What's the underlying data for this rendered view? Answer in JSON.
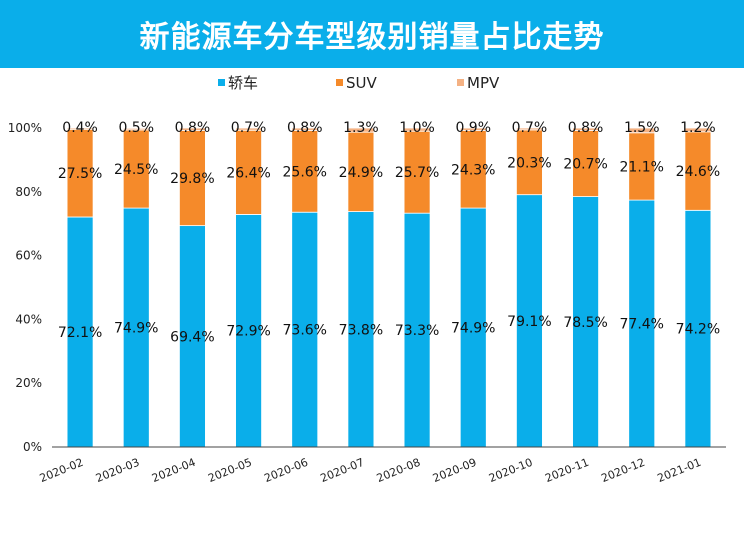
{
  "title": "新能源车分车型级别销量占比走势",
  "chart_data": {
    "type": "bar",
    "stacked": true,
    "categories": [
      "2020-02",
      "2020-03",
      "2020-04",
      "2020-05",
      "2020-06",
      "2020-07",
      "2020-08",
      "2020-09",
      "2020-10",
      "2020-11",
      "2020-12",
      "2021-01"
    ],
    "series": [
      {
        "name": "轿车",
        "color": "#0aaeea",
        "values": [
          72.1,
          74.9,
          69.4,
          72.9,
          73.6,
          73.8,
          73.3,
          74.9,
          79.1,
          78.5,
          77.4,
          74.2
        ],
        "labels": [
          "72.1%",
          "74.9%",
          "69.4%",
          "72.9%",
          "73.6%",
          "73.8%",
          "73.3%",
          "74.9%",
          "79.1%",
          "78.5%",
          "77.4%",
          "74.2%"
        ]
      },
      {
        "name": "SUV",
        "color": "#f58a2a",
        "values": [
          27.5,
          24.5,
          29.8,
          26.4,
          25.6,
          24.9,
          25.7,
          24.3,
          20.3,
          20.7,
          21.1,
          24.6
        ],
        "labels": [
          "27.5%",
          "24.5%",
          "29.8%",
          "26.4%",
          "25.6%",
          "24.9%",
          "25.7%",
          "24.3%",
          "20.3%",
          "20.7%",
          "21.1%",
          "24.6%"
        ]
      },
      {
        "name": "MPV",
        "color": "#f4b183",
        "values": [
          0.4,
          0.5,
          0.8,
          0.7,
          0.8,
          1.3,
          1.0,
          0.9,
          0.7,
          0.8,
          1.5,
          1.2
        ],
        "labels": [
          "0.4%",
          "0.5%",
          "0.8%",
          "0.7%",
          "0.8%",
          "1.3%",
          "1.0%",
          "0.9%",
          "0.7%",
          "0.8%",
          "1.5%",
          "1.2%"
        ]
      }
    ],
    "ylim": [
      0,
      100
    ],
    "yticks": [
      "0%",
      "20%",
      "40%",
      "60%",
      "80%",
      "100%"
    ],
    "legend_position": "top",
    "grid": false
  }
}
